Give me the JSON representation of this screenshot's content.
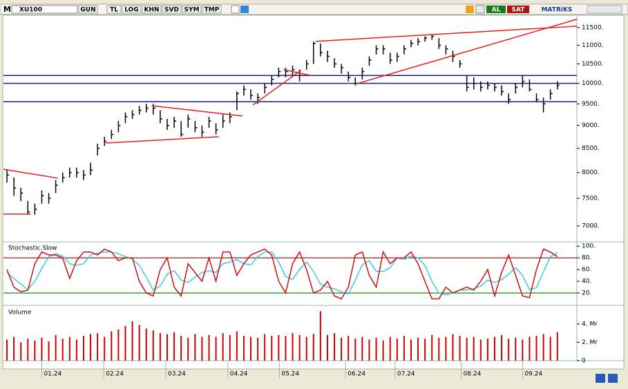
{
  "toolbar": {
    "logo": "M",
    "symbol": "XU100",
    "buttons": [
      "GUN",
      "TL",
      "LOG",
      "KHN",
      "SVD",
      "SYM",
      "TMP"
    ],
    "buy": "AL",
    "sell": "SAT",
    "brand": "MATRiKS"
  },
  "chart_data": [
    {
      "type": "ohlc",
      "log_scale": true,
      "xlim": [
        -0.5,
        81.8
      ],
      "ylim": [
        6750,
        11860
      ],
      "yticks": [
        {
          "value": 11500,
          "label": "11500."
        },
        {
          "value": 11000,
          "label": "11000."
        },
        {
          "value": 10500,
          "label": "10500."
        },
        {
          "value": 10000,
          "label": "10000."
        },
        {
          "value": 9500,
          "label": "9500."
        },
        {
          "value": 9000,
          "label": "9000."
        },
        {
          "value": 8500,
          "label": "8500."
        },
        {
          "value": 8000,
          "label": "8000."
        },
        {
          "value": 7500,
          "label": "7500."
        },
        {
          "value": 7000,
          "label": "7000."
        }
      ],
      "color": "#000000",
      "high": [
        8050,
        7900,
        7700,
        7450,
        7400,
        7650,
        7600,
        7850,
        8000,
        8100,
        8100,
        8050,
        8200,
        8600,
        8750,
        8900,
        9100,
        9300,
        9350,
        9450,
        9500,
        9500,
        9350,
        9150,
        9200,
        9100,
        9250,
        9100,
        9000,
        9200,
        9050,
        9250,
        9300,
        9800,
        9950,
        9850,
        9750,
        10000,
        10200,
        10400,
        10400,
        10450,
        10350,
        10600,
        11100,
        11050,
        10850,
        10650,
        10500,
        10300,
        10150,
        10400,
        10700,
        11000,
        11000,
        10800,
        10800,
        11000,
        11150,
        11200,
        11250,
        11300,
        11200,
        11000,
        10850,
        10600,
        10200,
        10150,
        10050,
        10050,
        10000,
        9950,
        9750,
        10000,
        10200,
        10100,
        9750,
        9650,
        9850,
        10050
      ],
      "low": [
        7800,
        7550,
        7450,
        7200,
        7200,
        7400,
        7400,
        7600,
        7800,
        7900,
        7900,
        7850,
        7950,
        8350,
        8550,
        8700,
        8850,
        9050,
        9150,
        9250,
        9300,
        9250,
        9050,
        8900,
        8950,
        8750,
        8950,
        8850,
        8750,
        8950,
        8800,
        8950,
        9050,
        9350,
        9700,
        9600,
        9500,
        9750,
        9950,
        10150,
        10150,
        10200,
        10050,
        10350,
        10500,
        10700,
        10550,
        10400,
        10250,
        10050,
        9950,
        10100,
        10450,
        10750,
        10750,
        10500,
        10550,
        10750,
        10950,
        11000,
        11100,
        11150,
        10900,
        10750,
        10550,
        10400,
        9800,
        9850,
        9800,
        9850,
        9800,
        9700,
        9500,
        9750,
        9900,
        9800,
        9550,
        9300,
        9600,
        9850
      ],
      "close": [
        7950,
        7700,
        7600,
        7250,
        7300,
        7550,
        7500,
        7750,
        7900,
        8000,
        8000,
        7950,
        8050,
        8500,
        8650,
        8800,
        9000,
        9200,
        9250,
        9350,
        9400,
        9400,
        9150,
        9000,
        9100,
        8800,
        9150,
        8950,
        8850,
        9100,
        8900,
        9100,
        9200,
        9750,
        9850,
        9700,
        9650,
        9900,
        10100,
        10300,
        10300,
        10350,
        10200,
        10500,
        11050,
        10800,
        10700,
        10500,
        10400,
        10150,
        10000,
        10300,
        10600,
        10900,
        10900,
        10600,
        10700,
        10900,
        11050,
        11100,
        11200,
        11250,
        11000,
        10900,
        10700,
        10500,
        9900,
        10000,
        9900,
        9950,
        9900,
        9800,
        9600,
        9900,
        10050,
        9850,
        9600,
        9500,
        9750,
        9950
      ],
      "hlines": {
        "color": "#1a1aa6",
        "values": [
          10200,
          10000,
          9550
        ]
      },
      "trendlines": {
        "color": "#e02020",
        "lines": [
          {
            "x": [
              -0.5,
              7.3
            ],
            "y": [
              8066,
              7889
            ]
          },
          {
            "x": [
              -0.5,
              3.4
            ],
            "y": [
              7210,
              7210
            ]
          },
          {
            "x": [
              14.2,
              30.4
            ],
            "y": [
              8614,
              8750
            ]
          },
          {
            "x": [
              20.8,
              33.8
            ],
            "y": [
              9456,
              9217
            ]
          },
          {
            "x": [
              35.3,
              42.2
            ],
            "y": [
              9472,
              10330
            ]
          },
          {
            "x": [
              39.7,
              43.6
            ],
            "y": [
              10350,
              10200
            ]
          },
          {
            "x": [
              44.3,
              81.8
            ],
            "y": [
              11108,
              11540
            ]
          },
          {
            "x": [
              50,
              81.8
            ],
            "y": [
              9980,
              11740
            ]
          }
        ]
      }
    },
    {
      "type": "line",
      "title": "Stochastic.Slow",
      "xlim": [
        -0.5,
        81.8
      ],
      "ylim": [
        0,
        105
      ],
      "yticks": [
        {
          "value": 100,
          "label": "100."
        },
        {
          "value": 80,
          "label": "80."
        },
        {
          "value": 60,
          "label": "60."
        },
        {
          "value": 40,
          "label": "40."
        },
        {
          "value": 20,
          "label": "20."
        }
      ],
      "levels": [
        {
          "value": 80,
          "color": "#8b0000"
        },
        {
          "value": 20,
          "color": "#008000"
        }
      ],
      "series": [
        {
          "color": "#cc1010",
          "values": [
            60,
            30,
            22,
            25,
            70,
            90,
            85,
            85,
            80,
            45,
            75,
            90,
            90,
            85,
            95,
            90,
            75,
            80,
            80,
            40,
            20,
            15,
            60,
            80,
            30,
            15,
            70,
            55,
            40,
            80,
            40,
            90,
            90,
            50,
            70,
            85,
            90,
            95,
            85,
            40,
            20,
            70,
            90,
            60,
            20,
            25,
            40,
            15,
            10,
            30,
            85,
            90,
            50,
            30,
            90,
            70,
            80,
            80,
            90,
            70,
            40,
            10,
            10,
            30,
            20,
            25,
            30,
            25,
            40,
            60,
            15,
            55,
            85,
            50,
            15,
            12,
            60,
            95,
            90,
            82
          ]
        },
        {
          "color": "#40c8e0",
          "values": [
            55,
            45,
            35,
            26,
            40,
            62,
            82,
            87,
            83,
            70,
            67,
            70,
            85,
            88,
            90,
            90,
            87,
            82,
            78,
            67,
            47,
            25,
            32,
            52,
            58,
            42,
            38,
            47,
            55,
            58,
            55,
            70,
            73,
            77,
            70,
            68,
            82,
            90,
            90,
            73,
            48,
            43,
            60,
            73,
            57,
            35,
            30,
            27,
            22,
            18,
            42,
            68,
            75,
            57,
            57,
            63,
            80,
            77,
            83,
            80,
            67,
            40,
            20,
            17,
            20,
            25,
            25,
            27,
            32,
            42,
            38,
            43,
            52,
            63,
            50,
            26,
            29,
            56,
            82,
            89
          ]
        }
      ]
    },
    {
      "type": "bar",
      "title": "Volume",
      "xlim": [
        -0.5,
        81.8
      ],
      "ylim": [
        0,
        5.8
      ],
      "color": "#cc0000",
      "yticks": [
        {
          "value": 4,
          "label": "4. Mr"
        },
        {
          "value": 2,
          "label": "2. Mr"
        },
        0
      ],
      "values": [
        2.3,
        2.6,
        2.0,
        2.4,
        2.2,
        2.5,
        2.1,
        2.8,
        2.4,
        2.6,
        2.3,
        2.7,
        2.9,
        3.0,
        2.6,
        3.2,
        3.4,
        3.8,
        4.3,
        3.9,
        3.5,
        3.3,
        3.0,
        2.9,
        3.1,
        2.7,
        2.5,
        2.9,
        2.6,
        2.8,
        2.6,
        3.0,
        2.8,
        3.2,
        2.7,
        2.6,
        2.5,
        2.9,
        2.7,
        2.8,
        2.7,
        3.0,
        2.8,
        2.6,
        2.9,
        5.4,
        2.8,
        3.0,
        2.5,
        2.7,
        2.4,
        2.6,
        2.3,
        2.5,
        2.2,
        2.6,
        2.4,
        2.7,
        2.3,
        2.5,
        2.4,
        2.8,
        2.5,
        2.6,
        2.9,
        2.7,
        2.5,
        2.6,
        2.3,
        2.4,
        2.6,
        2.8,
        2.4,
        2.5,
        2.3,
        2.6,
        2.7,
        2.9,
        2.6,
        3.1
      ],
      "xticks": [
        {
          "value": 5,
          "label": "01.24"
        },
        {
          "value": 13.9,
          "label": "02.24"
        },
        {
          "value": 22.8,
          "label": "03.24"
        },
        {
          "value": 31.7,
          "label": "04.24"
        },
        {
          "value": 39.1,
          "label": "05.24"
        },
        {
          "value": 48.6,
          "label": "06.24"
        },
        {
          "value": 55.7,
          "label": "07.24"
        },
        {
          "value": 65.2,
          "label": "08.24"
        },
        {
          "value": 74,
          "label": "09.24"
        }
      ]
    }
  ]
}
